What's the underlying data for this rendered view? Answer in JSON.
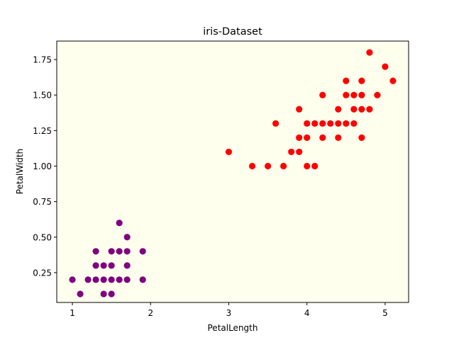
{
  "chart_data": {
    "type": "scatter",
    "title": "iris-Dataset",
    "xlabel": "PetalLength",
    "ylabel": "PetalWidth",
    "xlim": [
      0.8,
      5.3
    ],
    "ylim": [
      0.04,
      1.88
    ],
    "x_ticks": [
      1,
      2,
      3,
      4,
      5
    ],
    "y_ticks": [
      0.25,
      0.5,
      0.75,
      1.0,
      1.25,
      1.5,
      1.75
    ],
    "y_tick_labels": [
      "0.25",
      "0.50",
      "0.75",
      "1.00",
      "1.25",
      "1.50",
      "1.75"
    ],
    "plot_background": "#ffffee",
    "grid": false,
    "legend": "none",
    "series": [
      {
        "color": "#800080",
        "points": [
          [
            1.0,
            0.2
          ],
          [
            1.1,
            0.1
          ],
          [
            1.2,
            0.2
          ],
          [
            1.3,
            0.2
          ],
          [
            1.3,
            0.3
          ],
          [
            1.3,
            0.4
          ],
          [
            1.4,
            0.1
          ],
          [
            1.4,
            0.2
          ],
          [
            1.4,
            0.3
          ],
          [
            1.5,
            0.1
          ],
          [
            1.5,
            0.2
          ],
          [
            1.5,
            0.3
          ],
          [
            1.5,
            0.4
          ],
          [
            1.6,
            0.2
          ],
          [
            1.6,
            0.4
          ],
          [
            1.6,
            0.6
          ],
          [
            1.7,
            0.2
          ],
          [
            1.7,
            0.3
          ],
          [
            1.7,
            0.4
          ],
          [
            1.7,
            0.5
          ],
          [
            1.9,
            0.2
          ],
          [
            1.9,
            0.4
          ]
        ]
      },
      {
        "color": "#ff0000",
        "points": [
          [
            3.0,
            1.1
          ],
          [
            3.3,
            1.0
          ],
          [
            3.5,
            1.0
          ],
          [
            3.6,
            1.3
          ],
          [
            3.7,
            1.0
          ],
          [
            3.8,
            1.1
          ],
          [
            3.9,
            1.1
          ],
          [
            3.9,
            1.2
          ],
          [
            3.9,
            1.4
          ],
          [
            4.0,
            1.0
          ],
          [
            4.0,
            1.2
          ],
          [
            4.0,
            1.3
          ],
          [
            4.1,
            1.0
          ],
          [
            4.1,
            1.3
          ],
          [
            4.2,
            1.2
          ],
          [
            4.2,
            1.3
          ],
          [
            4.2,
            1.5
          ],
          [
            4.3,
            1.3
          ],
          [
            4.4,
            1.2
          ],
          [
            4.4,
            1.3
          ],
          [
            4.4,
            1.4
          ],
          [
            4.5,
            1.3
          ],
          [
            4.5,
            1.5
          ],
          [
            4.5,
            1.6
          ],
          [
            4.6,
            1.3
          ],
          [
            4.6,
            1.4
          ],
          [
            4.6,
            1.5
          ],
          [
            4.7,
            1.2
          ],
          [
            4.7,
            1.4
          ],
          [
            4.7,
            1.5
          ],
          [
            4.7,
            1.6
          ],
          [
            4.8,
            1.4
          ],
          [
            4.8,
            1.8
          ],
          [
            4.9,
            1.5
          ],
          [
            5.0,
            1.7
          ],
          [
            5.1,
            1.6
          ]
        ]
      }
    ]
  }
}
